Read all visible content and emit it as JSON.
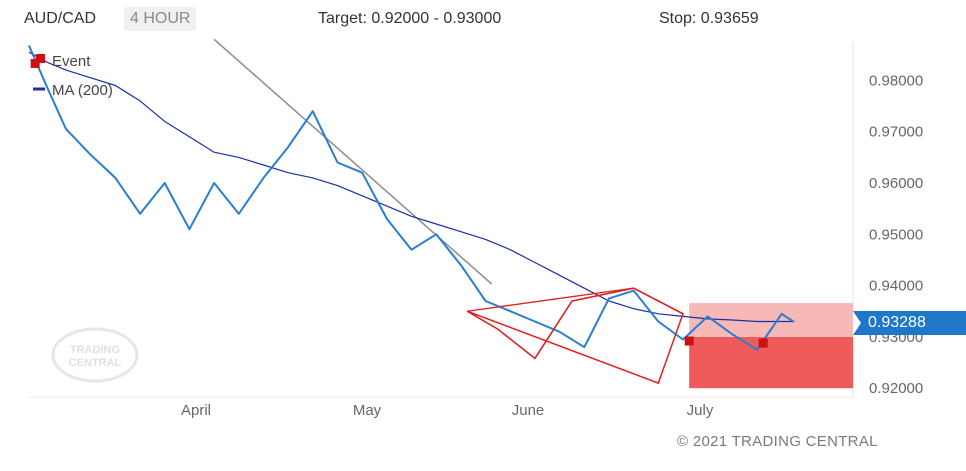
{
  "header": {
    "symbol": "AUD/CAD",
    "timeframe": "4 HOUR",
    "target": "Target: 0.92000 - 0.93000",
    "stop": "Stop: 0.93659"
  },
  "legend": {
    "event_label": "Event",
    "ma_label": "MA (200)"
  },
  "current_price": "0.93288",
  "copyright": "© 2021 TRADING CENTRAL",
  "watermark": {
    "line1": "TRADING",
    "line2": "CENTRAL"
  },
  "colors": {
    "price": "#2a7dd1",
    "ma": "#1b2fa8",
    "trendline": "#8c8c8c",
    "pattern": "#e02020",
    "target_zone": "#ef5b5b",
    "stop_zone": "#f7b8b8",
    "event": "#cc1111",
    "price_tag": "#1f77c9"
  },
  "chart_data": {
    "type": "line",
    "y_ticks": [
      "0.98000",
      "0.97000",
      "0.96000",
      "0.95000",
      "0.94000",
      "0.93000",
      "0.92000"
    ],
    "x_ticks": [
      "April",
      "May",
      "June",
      "July"
    ],
    "ylim": [
      0.9175,
      0.9887
    ],
    "x": [
      0,
      3,
      6,
      10,
      14,
      18,
      22,
      26,
      30,
      34,
      38,
      42,
      46,
      50,
      54,
      58,
      62,
      66,
      70,
      74,
      78,
      82,
      86,
      90,
      94,
      98,
      102,
      106,
      110,
      114,
      118,
      122,
      124
    ],
    "series": [
      {
        "name": "AUD/CAD",
        "values": [
          0.9868,
          0.9785,
          0.9705,
          0.9655,
          0.961,
          0.954,
          0.96,
          0.951,
          0.96,
          0.954,
          0.961,
          0.967,
          0.974,
          0.964,
          0.962,
          0.953,
          0.947,
          0.95,
          0.944,
          0.937,
          0.935,
          0.933,
          0.931,
          0.928,
          0.9375,
          0.939,
          0.933,
          0.9295,
          0.934,
          0.9305,
          0.9275,
          0.9345,
          0.9329
        ]
      },
      {
        "name": "MA (200)",
        "values": [
          0.9855,
          0.9835,
          0.982,
          0.9805,
          0.979,
          0.976,
          0.972,
          0.969,
          0.966,
          0.965,
          0.9635,
          0.962,
          0.961,
          0.9595,
          0.9575,
          0.9555,
          0.9535,
          0.952,
          0.9505,
          0.949,
          0.947,
          0.9445,
          0.942,
          0.9395,
          0.937,
          0.9355,
          0.9345,
          0.934,
          0.9335,
          0.9333,
          0.933,
          0.933,
          0.933
        ]
      }
    ],
    "trendline": {
      "x": [
        30,
        75
      ],
      "y": [
        0.988,
        0.9403
      ]
    },
    "pattern": {
      "x": [
        71,
        76,
        82,
        88,
        98,
        106,
        102
      ],
      "y": [
        0.935,
        0.9315,
        0.9258,
        0.937,
        0.9395,
        0.9345,
        0.921
      ]
    },
    "events": [
      {
        "x": 1,
        "y": 0.9833
      },
      {
        "x": 107,
        "y": 0.9292
      },
      {
        "x": 119,
        "y": 0.9288
      }
    ],
    "target_zone": [
      0.92,
      0.93
    ],
    "stop_zone": [
      0.93,
      0.9366
    ],
    "zone_x_start": 107
  }
}
